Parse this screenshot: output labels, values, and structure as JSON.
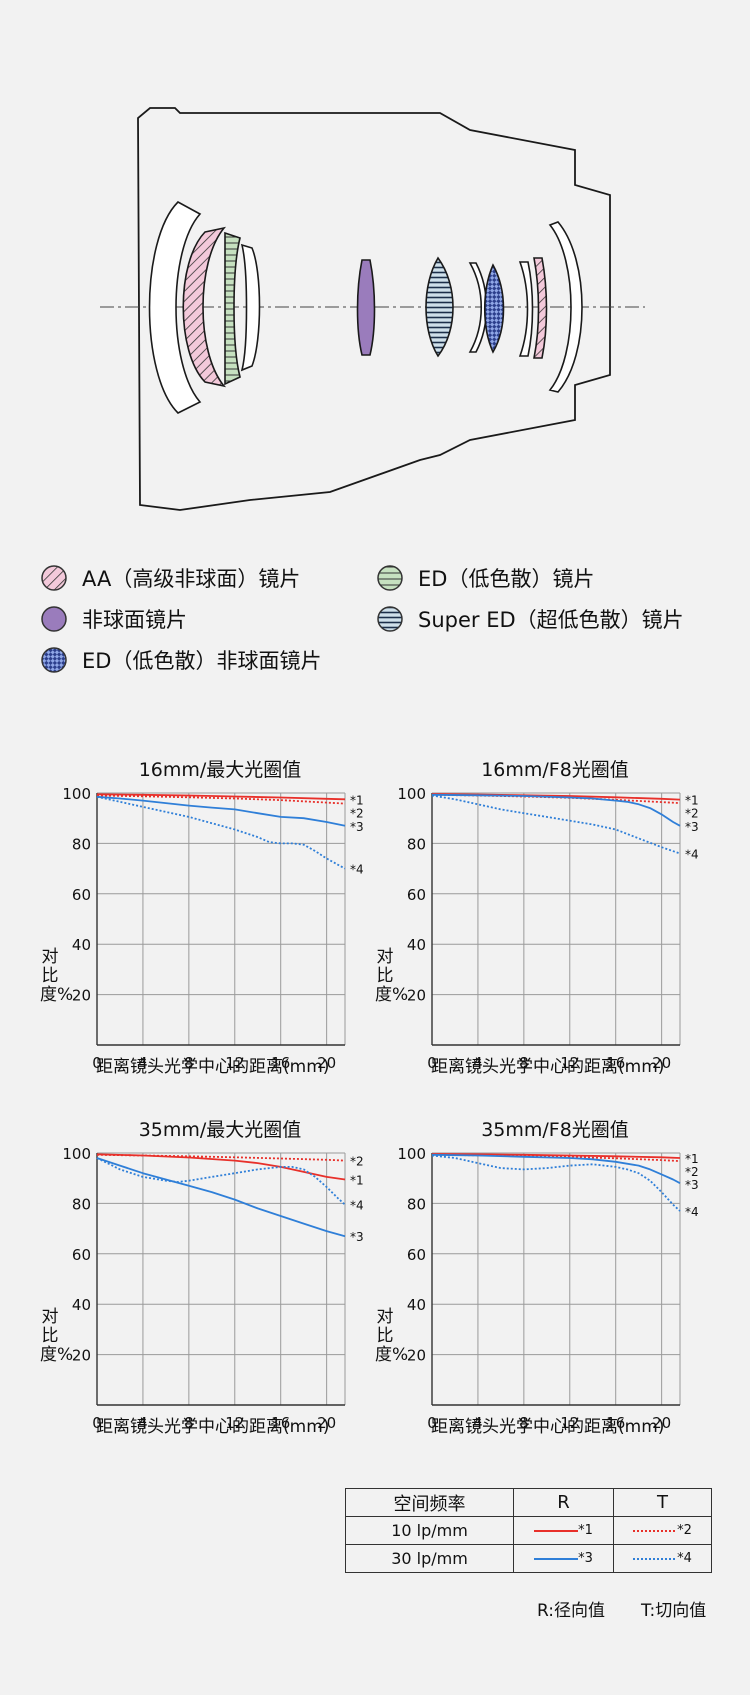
{
  "legend": [
    {
      "label": "AA（高级非球面）镜片",
      "icon": "pink-hatched-circle-icon",
      "color": "#f0c4d6"
    },
    {
      "label": "非球面镜片",
      "icon": "purple-circle-icon",
      "color": "#9a7cbc"
    },
    {
      "label": "ED（低色散）非球面镜片",
      "icon": "blue-checkered-circle-icon",
      "color": "#5a76c8"
    },
    {
      "label": "ED（低色散）镜片",
      "icon": "green-circle-icon",
      "color": "#c4dfbf"
    },
    {
      "label": "Super ED（超低色散）镜片",
      "icon": "blue-striped-circle-icon",
      "color": "#c9dce6"
    }
  ],
  "chart_data": [
    {
      "type": "line",
      "title": "16mm/最大光圈值",
      "xlabel": "距离镜头光学中心的距离(mm)",
      "ylabel": "对比度%",
      "xlim": [
        0,
        21.6
      ],
      "ylim": [
        0,
        100
      ],
      "xticks": [
        0,
        4,
        8,
        12,
        16,
        20
      ],
      "yticks": [
        20,
        40,
        60,
        80,
        100
      ],
      "grid": true,
      "series": [
        {
          "name": "*1",
          "color": "#e8302a",
          "style": "solid",
          "x": [
            0,
            4,
            8,
            12,
            16,
            20,
            21.6
          ],
          "y": [
            99.5,
            99.3,
            99,
            98.6,
            98.2,
            97.7,
            97.5
          ]
        },
        {
          "name": "*2",
          "color": "#e8302a",
          "style": "dotted",
          "x": [
            0,
            4,
            8,
            12,
            16,
            20,
            21.6
          ],
          "y": [
            99,
            98.7,
            98.3,
            97.8,
            97.2,
            96.2,
            95.8
          ]
        },
        {
          "name": "*3",
          "color": "#2f7fd8",
          "style": "solid",
          "x": [
            0,
            2,
            4,
            6,
            8,
            10,
            12,
            14,
            16,
            18,
            20,
            21.6
          ],
          "y": [
            98.5,
            97.8,
            97,
            96,
            95,
            94.2,
            93.5,
            92,
            90.5,
            90,
            88.5,
            87
          ]
        },
        {
          "name": "*4",
          "color": "#2f7fd8",
          "style": "dotted",
          "x": [
            0,
            2,
            4,
            6,
            8,
            10,
            12,
            14,
            15,
            16,
            17,
            18,
            19,
            20,
            21.6
          ],
          "y": [
            98.5,
            96.5,
            94.5,
            92.5,
            90.5,
            88,
            85.5,
            82.5,
            80.5,
            80,
            80,
            79.5,
            77,
            74,
            70
          ]
        }
      ]
    },
    {
      "type": "line",
      "title": "16mm/F8光圈值",
      "xlabel": "距离镜头光学中心的距离(mm)",
      "ylabel": "对比度%",
      "xlim": [
        0,
        21.6
      ],
      "ylim": [
        0,
        100
      ],
      "xticks": [
        0,
        4,
        8,
        12,
        16,
        20
      ],
      "yticks": [
        20,
        40,
        60,
        80,
        100
      ],
      "grid": true,
      "series": [
        {
          "name": "*1",
          "color": "#e8302a",
          "style": "solid",
          "x": [
            0,
            4,
            8,
            12,
            16,
            20,
            21.6
          ],
          "y": [
            99.6,
            99.4,
            99.1,
            98.8,
            98.3,
            97.7,
            97.4
          ]
        },
        {
          "name": "*2",
          "color": "#e8302a",
          "style": "dotted",
          "x": [
            0,
            4,
            8,
            12,
            16,
            20,
            21.6
          ],
          "y": [
            99.3,
            99,
            98.6,
            98.1,
            97.3,
            96.4,
            96
          ]
        },
        {
          "name": "*3",
          "color": "#2f7fd8",
          "style": "solid",
          "x": [
            0,
            4,
            8,
            12,
            14,
            16,
            17,
            18,
            19,
            20,
            21,
            21.6
          ],
          "y": [
            99.3,
            99.1,
            98.8,
            98.2,
            97.8,
            97,
            96.5,
            95.5,
            94,
            91.5,
            88.5,
            87
          ]
        },
        {
          "name": "*4",
          "color": "#2f7fd8",
          "style": "dotted",
          "x": [
            0,
            2,
            4,
            6,
            8,
            10,
            12,
            14,
            16,
            18,
            20,
            21.6
          ],
          "y": [
            99,
            97.5,
            95.5,
            93.5,
            92,
            90.5,
            89,
            87.5,
            85.5,
            82,
            78.5,
            76
          ]
        }
      ]
    },
    {
      "type": "line",
      "title": "35mm/最大光圈值",
      "xlabel": "距离镜头光学中心的距离(mm)",
      "ylabel": "对比度%",
      "xlim": [
        0,
        21.6
      ],
      "ylim": [
        0,
        100
      ],
      "xticks": [
        0,
        4,
        8,
        12,
        16,
        20
      ],
      "yticks": [
        20,
        40,
        60,
        80,
        100
      ],
      "grid": true,
      "series": [
        {
          "name": "*1",
          "color": "#e8302a",
          "style": "solid",
          "x": [
            0,
            4,
            8,
            12,
            14,
            16,
            18,
            20,
            21.6
          ],
          "y": [
            99.5,
            99,
            98.2,
            97,
            96,
            94.5,
            92.5,
            90.5,
            89.5
          ]
        },
        {
          "name": "*2",
          "color": "#e8302a",
          "style": "dotted",
          "x": [
            0,
            4,
            8,
            12,
            16,
            20,
            21.6
          ],
          "y": [
            99.3,
            99,
            98.7,
            98.3,
            97.8,
            97.3,
            97
          ]
        },
        {
          "name": "*3",
          "color": "#2f7fd8",
          "style": "solid",
          "x": [
            0,
            2,
            4,
            6,
            8,
            10,
            12,
            14,
            16,
            18,
            20,
            21.6
          ],
          "y": [
            98,
            95,
            92,
            89.5,
            87,
            84.5,
            81.5,
            78,
            75,
            72,
            69,
            67
          ]
        },
        {
          "name": "*4",
          "color": "#2f7fd8",
          "style": "dotted",
          "x": [
            0,
            2,
            4,
            6,
            7,
            8,
            10,
            12,
            14,
            16,
            17,
            18,
            19,
            20,
            21,
            21.6
          ],
          "y": [
            98,
            93.5,
            90.5,
            89,
            88.5,
            89,
            90.5,
            92,
            93.5,
            94.5,
            94.5,
            93.5,
            90.5,
            86.5,
            82,
            79.5
          ]
        }
      ]
    },
    {
      "type": "line",
      "title": "35mm/F8光圈值",
      "xlabel": "距离镜头光学中心的距离(mm)",
      "ylabel": "对比度%",
      "xlim": [
        0,
        21.6
      ],
      "ylim": [
        0,
        100
      ],
      "xticks": [
        0,
        4,
        8,
        12,
        16,
        20
      ],
      "yticks": [
        20,
        40,
        60,
        80,
        100
      ],
      "grid": true,
      "series": [
        {
          "name": "*1",
          "color": "#e8302a",
          "style": "solid",
          "x": [
            0,
            4,
            8,
            12,
            16,
            20,
            21.6
          ],
          "y": [
            99.6,
            99.5,
            99.3,
            99,
            98.7,
            98.3,
            98
          ]
        },
        {
          "name": "*2",
          "color": "#e8302a",
          "style": "dotted",
          "x": [
            0,
            4,
            8,
            12,
            16,
            20,
            21.6
          ],
          "y": [
            99.3,
            99.1,
            98.8,
            98.4,
            97.9,
            97.2,
            96.8
          ]
        },
        {
          "name": "*3",
          "color": "#2f7fd8",
          "style": "solid",
          "x": [
            0,
            4,
            8,
            12,
            14,
            16,
            18,
            19,
            20,
            21,
            21.6
          ],
          "y": [
            99.3,
            99,
            98.5,
            98,
            97.5,
            96.5,
            95,
            93.5,
            91.5,
            89.5,
            88
          ]
        },
        {
          "name": "*4",
          "color": "#2f7fd8",
          "style": "dotted",
          "x": [
            0,
            2,
            4,
            6,
            8,
            10,
            12,
            14,
            16,
            17,
            18,
            19,
            20,
            21,
            21.6
          ],
          "y": [
            99,
            98,
            96,
            94,
            93.5,
            94,
            95,
            95.5,
            94.5,
            93.5,
            92,
            89,
            84.5,
            79.5,
            77
          ]
        }
      ]
    }
  ],
  "key_table": {
    "header": [
      "空间频率",
      "R",
      "T"
    ],
    "rows": [
      {
        "freq": "10 lp/mm",
        "r_label": "*1",
        "t_label": "*2",
        "color": "#e8302a"
      },
      {
        "freq": "30 lp/mm",
        "r_label": "*3",
        "t_label": "*4",
        "color": "#2f7fd8"
      }
    ]
  },
  "notes": {
    "r": "R:径向值",
    "t": "T:切向值"
  }
}
